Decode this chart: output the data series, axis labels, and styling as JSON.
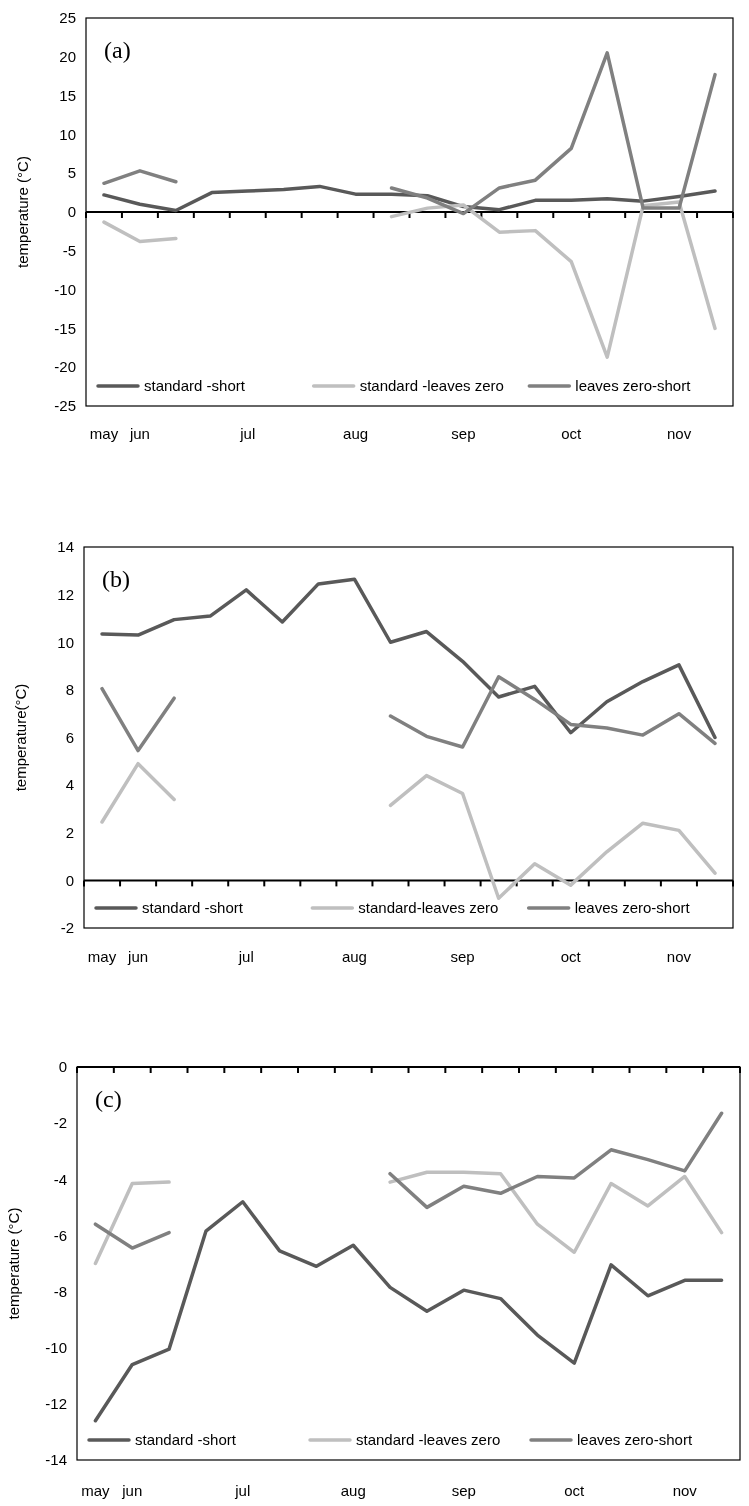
{
  "chart_data": [
    {
      "type": "line",
      "title": "(a)",
      "ylabel": "temperature (°C)",
      "categories": [
        "may",
        "jun",
        null,
        null,
        "jul",
        null,
        null,
        "aug",
        null,
        null,
        "sep",
        null,
        null,
        "oct",
        null,
        null,
        "nov",
        null
      ],
      "ylim": [
        -25,
        25
      ],
      "yticks": [
        -25,
        -20,
        -15,
        -10,
        -5,
        0,
        5,
        10,
        15,
        20,
        25
      ],
      "legend": "bottom",
      "marker": "none",
      "line_style": "solid",
      "series": [
        {
          "name": "standard -short",
          "color": "#595959",
          "values": [
            2.2,
            1.0,
            0.2,
            2.5,
            2.7,
            2.9,
            3.3,
            2.3,
            2.3,
            2.1,
            0.7,
            0.3,
            1.5,
            1.5,
            1.7,
            1.4,
            2.0,
            2.7
          ]
        },
        {
          "name": "standard -leaves zero",
          "color": "#bfbfbf",
          "values": [
            -1.3,
            -3.8,
            -3.4,
            null,
            null,
            null,
            null,
            null,
            -0.6,
            0.5,
            0.9,
            -2.6,
            -2.4,
            -6.4,
            -18.7,
            0.8,
            1.3,
            -15.0
          ]
        },
        {
          "name": "leaves zero-short",
          "color": "#808080",
          "values": [
            3.7,
            5.3,
            3.9,
            null,
            null,
            null,
            null,
            null,
            3.1,
            1.8,
            -0.2,
            3.1,
            4.1,
            8.2,
            20.5,
            0.5,
            0.5,
            17.7
          ]
        }
      ]
    },
    {
      "type": "line",
      "title": "(b)",
      "ylabel": "temperature(°C)",
      "categories": [
        "may",
        "jun",
        null,
        null,
        "jul",
        null,
        null,
        "aug",
        null,
        null,
        "sep",
        null,
        null,
        "oct",
        null,
        null,
        "nov",
        null
      ],
      "ylim": [
        -2,
        14
      ],
      "yticks": [
        -2,
        0,
        2,
        4,
        6,
        8,
        10,
        12,
        14
      ],
      "legend": "bottom",
      "marker": "none",
      "line_style": "solid",
      "series": [
        {
          "name": "standard -short",
          "color": "#595959",
          "values": [
            10.35,
            10.3,
            10.95,
            11.1,
            12.2,
            10.85,
            12.45,
            12.65,
            10.0,
            10.45,
            9.2,
            7.7,
            8.15,
            6.2,
            7.5,
            8.35,
            9.05,
            6.0
          ]
        },
        {
          "name": "standard-leaves zero",
          "color": "#bfbfbf",
          "values": [
            2.45,
            4.9,
            3.4,
            null,
            null,
            null,
            null,
            null,
            3.15,
            4.4,
            3.65,
            -0.75,
            0.7,
            -0.2,
            1.2,
            2.4,
            2.1,
            0.3
          ]
        },
        {
          "name": "leaves zero-short",
          "color": "#808080",
          "values": [
            8.05,
            5.45,
            7.65,
            null,
            null,
            null,
            null,
            null,
            6.9,
            6.05,
            5.6,
            8.55,
            7.6,
            6.55,
            6.4,
            6.1,
            7.0,
            5.75
          ]
        }
      ]
    },
    {
      "type": "line",
      "title": "(c)",
      "ylabel": "temperature (°C)",
      "categories": [
        "may",
        "jun",
        null,
        null,
        "jul",
        null,
        null,
        "aug",
        null,
        null,
        "sep",
        null,
        null,
        "oct",
        null,
        null,
        "nov",
        null
      ],
      "ylim": [
        -14,
        0
      ],
      "yticks": [
        -14,
        -12,
        -10,
        -8,
        -6,
        -4,
        -2,
        0
      ],
      "legend": "bottom",
      "marker": "none",
      "line_style": "solid",
      "series": [
        {
          "name": "standard -short",
          "color": "#595959",
          "values": [
            -12.6,
            -10.6,
            -10.05,
            -5.85,
            -4.8,
            -6.55,
            -7.1,
            -6.35,
            -7.85,
            -8.7,
            -7.95,
            -8.25,
            -9.55,
            -10.55,
            -7.05,
            -8.15,
            -7.6,
            -7.6
          ]
        },
        {
          "name": "standard -leaves zero",
          "color": "#bfbfbf",
          "values": [
            -7.0,
            -4.15,
            -4.1,
            null,
            null,
            null,
            null,
            null,
            -4.1,
            -3.75,
            -3.75,
            -3.8,
            -5.6,
            -6.6,
            -4.15,
            -4.95,
            -3.9,
            -5.9
          ]
        },
        {
          "name": "leaves zero-short",
          "color": "#808080",
          "values": [
            -5.6,
            -6.45,
            -5.9,
            null,
            null,
            null,
            null,
            null,
            -3.8,
            -5.0,
            -4.25,
            -4.5,
            -3.9,
            -3.95,
            -2.95,
            -3.3,
            -3.7,
            -1.65
          ]
        }
      ]
    }
  ]
}
